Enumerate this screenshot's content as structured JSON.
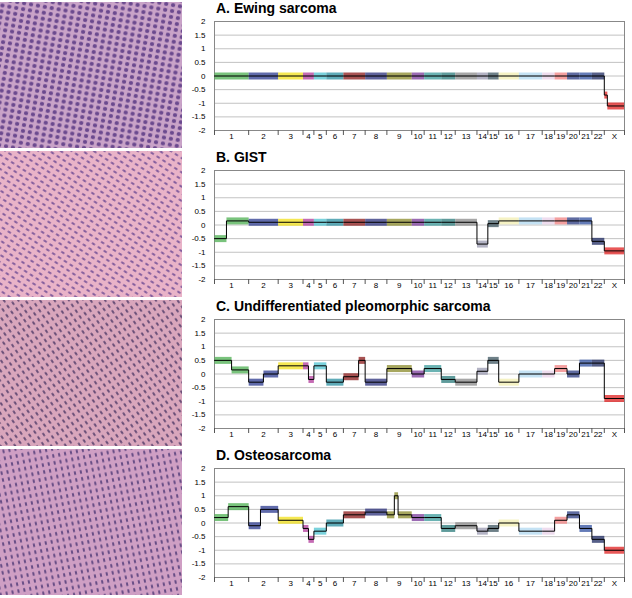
{
  "chart_data": [
    {
      "type": "line",
      "title": "A. Ewing sarcoma",
      "chromosomes": [
        "1",
        "2",
        "3",
        "4",
        "5",
        "6",
        "7",
        "8",
        "9",
        "10",
        "11",
        "12",
        "13",
        "14",
        "15",
        "16",
        "17",
        "18",
        "19",
        "20",
        "21",
        "22",
        "X"
      ],
      "widths": [
        22,
        19,
        16,
        7,
        8,
        11,
        14,
        14,
        16,
        8,
        11,
        9,
        14,
        7,
        7,
        13,
        15,
        8,
        8,
        8,
        8,
        8,
        13
      ],
      "colors": [
        "#4caf50",
        "#2b3a8f",
        "#f2e01a",
        "#b03a9a",
        "#4ec3d0",
        "#2a8fa0",
        "#8b1a1a",
        "#2a2f7a",
        "#8a8a2a",
        "#7a3a9a",
        "#3a9a9a",
        "#2a7a7a",
        "#8a8a8a",
        "#9a9ab0",
        "#3d5560",
        "#f2eeb0",
        "#b0d8f0",
        "#e8d0e8",
        "#f08080",
        "#2a3a80",
        "#3050a0",
        "#1e2a60",
        "#e02020"
      ],
      "xlim": [
        0,
        264
      ],
      "ylim": [
        -2,
        2
      ],
      "yticks": [
        -2,
        -1.5,
        -1,
        -0.5,
        0,
        0.5,
        1,
        1.5,
        2
      ],
      "grid": true,
      "segments": [
        [
          "1",
          0,
          1,
          0
        ],
        [
          "2",
          0,
          1,
          0
        ],
        [
          "3",
          0,
          1,
          0
        ],
        [
          "4",
          0,
          1,
          0
        ],
        [
          "5",
          0,
          1,
          0
        ],
        [
          "6",
          0,
          1,
          0
        ],
        [
          "7",
          0,
          1,
          0
        ],
        [
          "8",
          0,
          1,
          0
        ],
        [
          "9",
          0,
          1,
          0
        ],
        [
          "10",
          0,
          1,
          0
        ],
        [
          "11",
          0,
          1,
          0
        ],
        [
          "12",
          0,
          1,
          0
        ],
        [
          "13",
          0,
          1,
          0
        ],
        [
          "14",
          0,
          1,
          0
        ],
        [
          "15",
          0,
          1,
          0
        ],
        [
          "16",
          0,
          1,
          0
        ],
        [
          "17",
          0,
          1,
          0
        ],
        [
          "18",
          0,
          1,
          0
        ],
        [
          "19",
          0,
          1,
          0
        ],
        [
          "20",
          0,
          1,
          0
        ],
        [
          "21",
          0,
          1,
          0
        ],
        [
          "22",
          0,
          1,
          0
        ],
        [
          "X",
          0,
          0.15,
          -0.7
        ],
        [
          "X",
          0.15,
          1,
          -1.1
        ]
      ]
    },
    {
      "type": "line",
      "title": "B. GIST",
      "chromosomes": [
        "1",
        "2",
        "3",
        "4",
        "5",
        "6",
        "7",
        "8",
        "9",
        "10",
        "11",
        "12",
        "13",
        "14",
        "15",
        "16",
        "17",
        "18",
        "19",
        "20",
        "21",
        "22",
        "X"
      ],
      "widths": [
        22,
        19,
        16,
        7,
        8,
        11,
        14,
        14,
        16,
        8,
        11,
        9,
        14,
        7,
        7,
        13,
        15,
        8,
        8,
        8,
        8,
        8,
        13
      ],
      "colors": [
        "#4caf50",
        "#2b3a8f",
        "#f2e01a",
        "#b03a9a",
        "#4ec3d0",
        "#2a8fa0",
        "#8b1a1a",
        "#2a2f7a",
        "#8a8a2a",
        "#7a3a9a",
        "#3a9a9a",
        "#2a7a7a",
        "#8a8a8a",
        "#9a9ab0",
        "#3d5560",
        "#f2eeb0",
        "#b0d8f0",
        "#e8d0e8",
        "#f08080",
        "#2a3a80",
        "#3050a0",
        "#1e2a60",
        "#e02020"
      ],
      "xlim": [
        0,
        264
      ],
      "ylim": [
        -2,
        2
      ],
      "yticks": [
        -2,
        -1.5,
        -1,
        -0.5,
        0,
        0.5,
        1,
        1.5,
        2
      ],
      "grid": true,
      "segments": [
        [
          "1",
          0,
          0.35,
          -0.5
        ],
        [
          "1",
          0.35,
          1,
          0.15
        ],
        [
          "2",
          0,
          1,
          0.1
        ],
        [
          "3",
          0,
          1,
          0.1
        ],
        [
          "4",
          0,
          1,
          0.1
        ],
        [
          "5",
          0,
          1,
          0.1
        ],
        [
          "6",
          0,
          1,
          0.1
        ],
        [
          "7",
          0,
          1,
          0.1
        ],
        [
          "8",
          0,
          1,
          0.1
        ],
        [
          "9",
          0,
          1,
          0.1
        ],
        [
          "10",
          0,
          1,
          0.1
        ],
        [
          "11",
          0,
          1,
          0.1
        ],
        [
          "12",
          0,
          1,
          0.1
        ],
        [
          "13",
          0,
          1,
          0.1
        ],
        [
          "14",
          0,
          1,
          -0.7
        ],
        [
          "15",
          0,
          1,
          0.05
        ],
        [
          "16",
          0,
          1,
          0.15
        ],
        [
          "17",
          0,
          1,
          0.15
        ],
        [
          "18",
          0,
          1,
          0.15
        ],
        [
          "19",
          0,
          1,
          0.15
        ],
        [
          "20",
          0,
          1,
          0.15
        ],
        [
          "21",
          0,
          1,
          0.15
        ],
        [
          "22",
          0,
          1,
          -0.6
        ],
        [
          "X",
          0,
          1,
          -0.95
        ]
      ]
    },
    {
      "type": "line",
      "title": "C. Undifferentiated pleomorphic sarcoma",
      "chromosomes": [
        "1",
        "2",
        "3",
        "4",
        "5",
        "6",
        "7",
        "8",
        "9",
        "10",
        "11",
        "12",
        "13",
        "14",
        "15",
        "16",
        "17",
        "18",
        "19",
        "20",
        "21",
        "22",
        "X"
      ],
      "widths": [
        22,
        19,
        16,
        7,
        8,
        11,
        14,
        14,
        16,
        8,
        11,
        9,
        14,
        7,
        7,
        13,
        15,
        8,
        8,
        8,
        8,
        8,
        13
      ],
      "colors": [
        "#4caf50",
        "#2b3a8f",
        "#f2e01a",
        "#b03a9a",
        "#4ec3d0",
        "#2a8fa0",
        "#8b1a1a",
        "#2a2f7a",
        "#8a8a2a",
        "#7a3a9a",
        "#3a9a9a",
        "#2a7a7a",
        "#8a8a8a",
        "#9a9ab0",
        "#3d5560",
        "#f2eeb0",
        "#b0d8f0",
        "#e8d0e8",
        "#f08080",
        "#2a3a80",
        "#3050a0",
        "#1e2a60",
        "#e02020"
      ],
      "xlim": [
        0,
        264
      ],
      "ylim": [
        -2,
        2
      ],
      "yticks": [
        -2,
        -1.5,
        -1,
        -0.5,
        0,
        0.5,
        1,
        1.5,
        2
      ],
      "grid": true,
      "segments": [
        [
          "1",
          0,
          0.5,
          0.5
        ],
        [
          "1",
          0.5,
          1,
          0.15
        ],
        [
          "2",
          0,
          0.5,
          -0.3
        ],
        [
          "2",
          0.5,
          1,
          0
        ],
        [
          "3",
          0,
          1,
          0.3
        ],
        [
          "4",
          0,
          0.5,
          0.3
        ],
        [
          "4",
          0.5,
          1,
          -0.2
        ],
        [
          "5",
          0,
          1,
          0.3
        ],
        [
          "6",
          0,
          1,
          -0.3
        ],
        [
          "7",
          0,
          0.7,
          -0.1
        ],
        [
          "7",
          0.7,
          1,
          0.5
        ],
        [
          "8",
          0,
          1,
          -0.3
        ],
        [
          "9",
          0,
          1,
          0.2
        ],
        [
          "10",
          0,
          1,
          0
        ],
        [
          "11",
          0,
          1,
          0.2
        ],
        [
          "12",
          0,
          1,
          -0.2
        ],
        [
          "13",
          0,
          1,
          -0.3
        ],
        [
          "14",
          0,
          1,
          0.1
        ],
        [
          "15",
          0,
          1,
          0.5
        ],
        [
          "16",
          0,
          1,
          -0.3
        ],
        [
          "17",
          0,
          1,
          0
        ],
        [
          "18",
          0,
          1,
          0
        ],
        [
          "19",
          0,
          1,
          0.2
        ],
        [
          "20",
          0,
          1,
          0
        ],
        [
          "21",
          0,
          1,
          0.4
        ],
        [
          "22",
          0,
          1,
          0.4
        ],
        [
          "X",
          0,
          1,
          -0.9
        ]
      ]
    },
    {
      "type": "line",
      "title": "D. Osteosarcoma",
      "chromosomes": [
        "1",
        "2",
        "3",
        "4",
        "5",
        "6",
        "7",
        "8",
        "9",
        "10",
        "11",
        "12",
        "13",
        "14",
        "15",
        "16",
        "17",
        "18",
        "19",
        "20",
        "21",
        "22",
        "X"
      ],
      "widths": [
        22,
        19,
        16,
        7,
        8,
        11,
        14,
        14,
        16,
        8,
        11,
        9,
        14,
        7,
        7,
        13,
        15,
        8,
        8,
        8,
        8,
        8,
        13
      ],
      "colors": [
        "#4caf50",
        "#2b3a8f",
        "#f2e01a",
        "#b03a9a",
        "#4ec3d0",
        "#2a8fa0",
        "#8b1a1a",
        "#2a2f7a",
        "#8a8a2a",
        "#7a3a9a",
        "#3a9a9a",
        "#2a7a7a",
        "#8a8a8a",
        "#9a9ab0",
        "#3d5560",
        "#f2eeb0",
        "#b0d8f0",
        "#e8d0e8",
        "#f08080",
        "#2a3a80",
        "#3050a0",
        "#1e2a60",
        "#e02020"
      ],
      "xlim": [
        0,
        264
      ],
      "ylim": [
        -2,
        2
      ],
      "yticks": [
        -2,
        -1.5,
        -1,
        -0.5,
        0,
        0.5,
        1,
        1.5,
        2
      ],
      "grid": true,
      "segments": [
        [
          "1",
          0,
          0.4,
          0.2
        ],
        [
          "1",
          0.4,
          1,
          0.6
        ],
        [
          "2",
          0,
          0.4,
          -0.1
        ],
        [
          "2",
          0.4,
          1,
          0.5
        ],
        [
          "3",
          0,
          1,
          0.1
        ],
        [
          "4",
          0,
          0.5,
          -0.2
        ],
        [
          "4",
          0.5,
          1,
          -0.6
        ],
        [
          "5",
          0,
          1,
          -0.3
        ],
        [
          "6",
          0,
          1,
          0
        ],
        [
          "7",
          0,
          1,
          0.3
        ],
        [
          "8",
          0,
          1,
          0.4
        ],
        [
          "9",
          0,
          0.3,
          0.3
        ],
        [
          "9",
          0.3,
          0.45,
          1
        ],
        [
          "9",
          0.45,
          1,
          0.3
        ],
        [
          "10",
          0,
          1,
          0.2
        ],
        [
          "11",
          0,
          1,
          0.2
        ],
        [
          "12",
          0,
          1,
          -0.2
        ],
        [
          "13",
          0,
          1,
          -0.1
        ],
        [
          "14",
          0,
          1,
          -0.3
        ],
        [
          "15",
          0,
          1,
          -0.2
        ],
        [
          "16",
          0,
          1,
          0
        ],
        [
          "17",
          0,
          1,
          -0.3
        ],
        [
          "18",
          0,
          1,
          -0.3
        ],
        [
          "19",
          0,
          1,
          0.1
        ],
        [
          "20",
          0,
          1,
          0.3
        ],
        [
          "21",
          0,
          1,
          -0.2
        ],
        [
          "22",
          0,
          1,
          -0.6
        ],
        [
          "X",
          0,
          1,
          -1
        ]
      ]
    }
  ]
}
